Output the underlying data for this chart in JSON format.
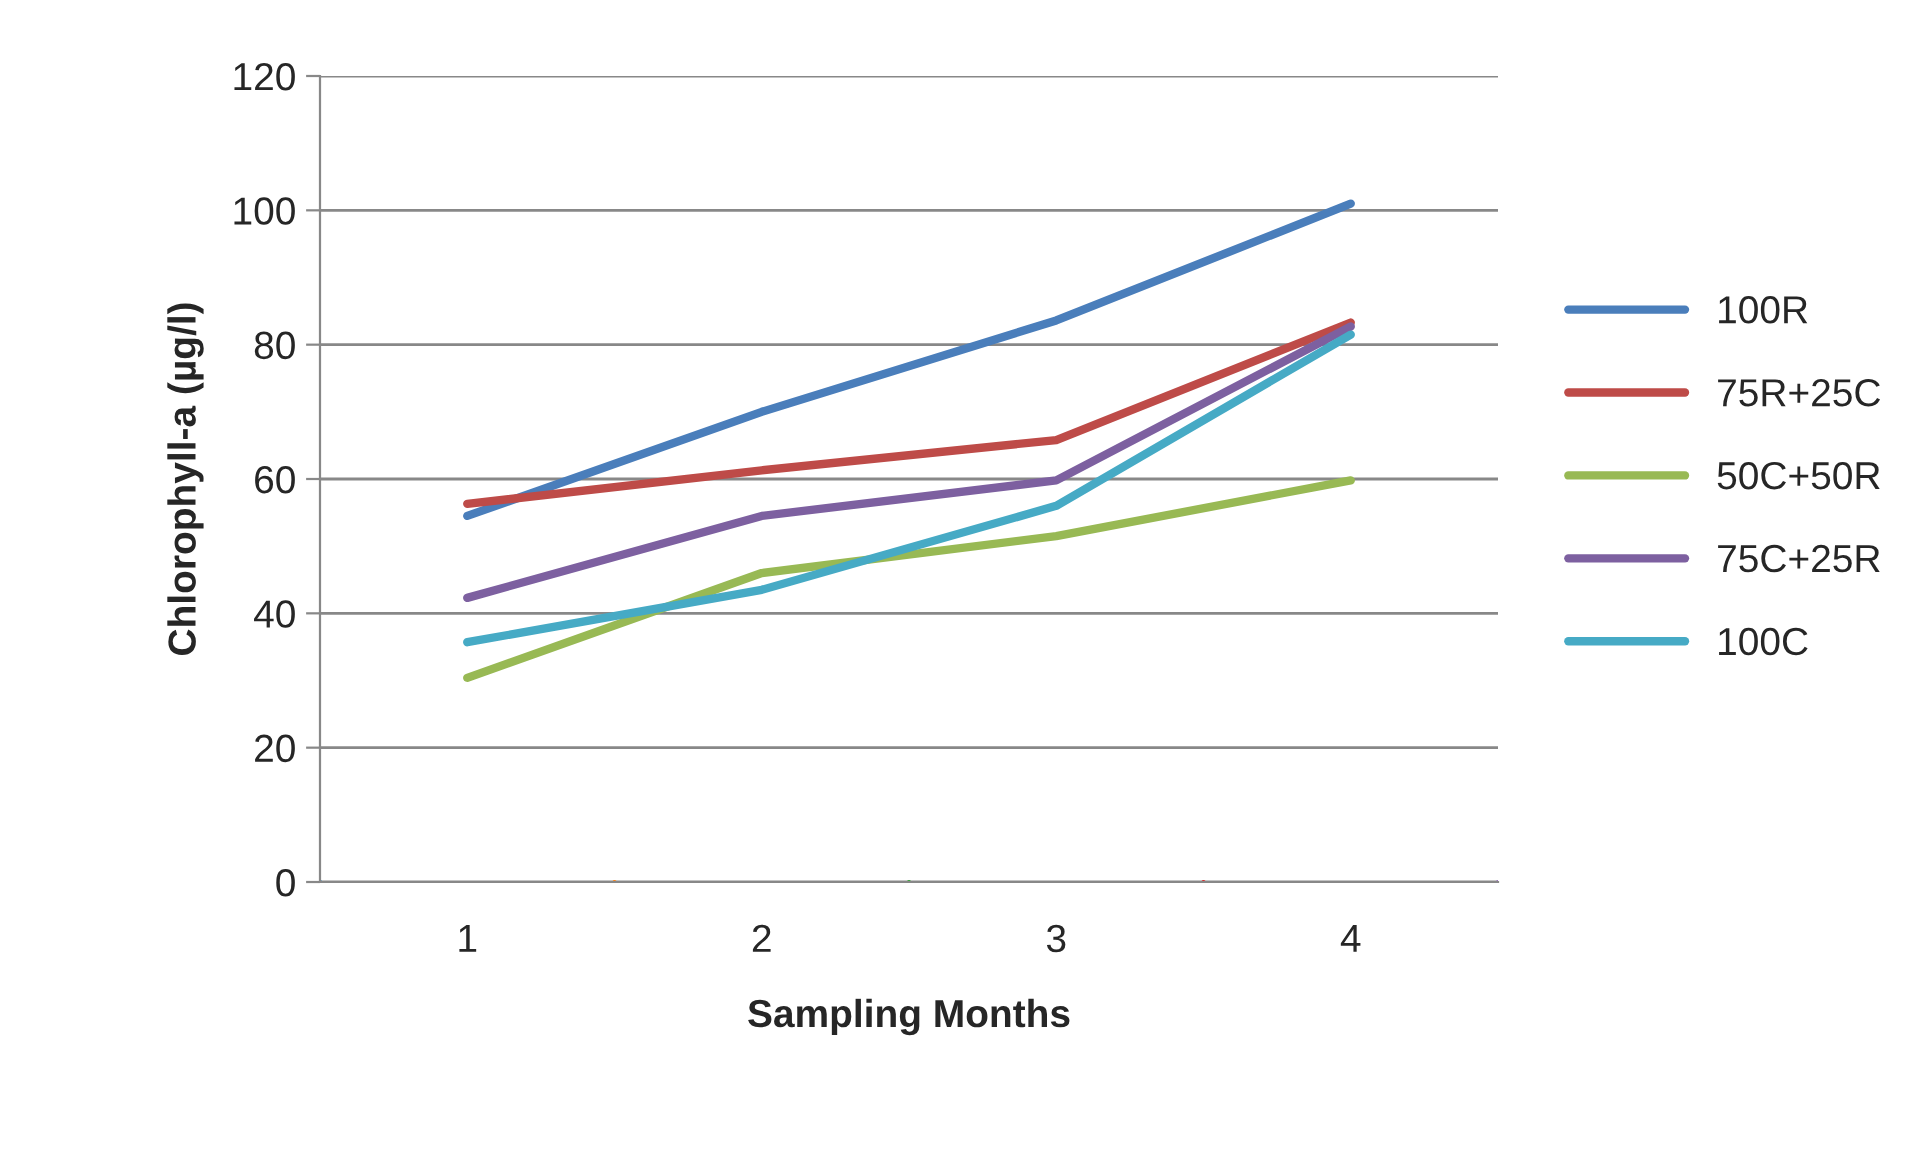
{
  "chart_data": {
    "type": "line",
    "xlabel": "Sampling Months",
    "ylabel": "Chlorophyll-a (µg/l)",
    "categories": [
      "1",
      "2",
      "3",
      "4"
    ],
    "series": [
      {
        "name": "100R",
        "color": "#4a7ebb",
        "values": [
          54.5,
          70,
          83.6,
          101
        ]
      },
      {
        "name": "75R+25C",
        "color": "#be4b48",
        "values": [
          56.3,
          61.3,
          65.8,
          83.3
        ]
      },
      {
        "name": "50C+50R",
        "color": "#98b954",
        "values": [
          30.4,
          46,
          51.5,
          59.8
        ]
      },
      {
        "name": "75C+25R",
        "color": "#7d60a0",
        "values": [
          42.3,
          54.5,
          59.8,
          82.7
        ]
      },
      {
        "name": "100C",
        "color": "#46aac5",
        "values": [
          35.7,
          43.5,
          56,
          81.5
        ]
      }
    ],
    "ylim": [
      0,
      120
    ],
    "yticks": [
      0,
      20,
      40,
      60,
      80,
      100,
      120
    ],
    "grid": "y",
    "legend": "right",
    "marker": "none",
    "line_style": "solid"
  }
}
